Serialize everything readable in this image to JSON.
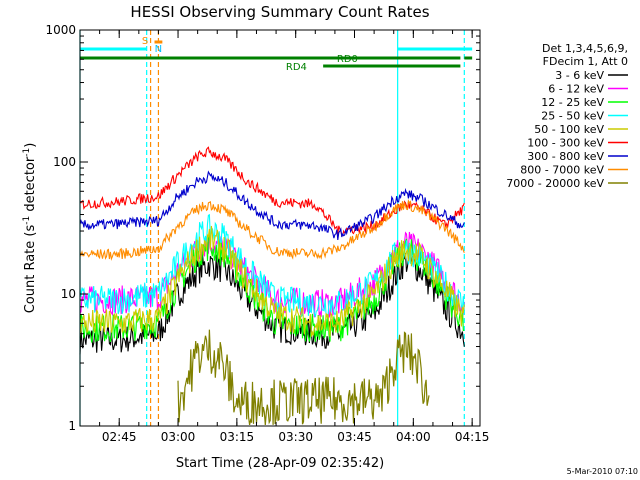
{
  "chart_data": {
    "type": "line",
    "title": "HESSI Observing Summary Count Rates",
    "xlabel": "Start Time (28-Apr-09 02:35:42)",
    "ylabel_main": "Count Rate (s",
    "ylabel_sup1": "-1",
    "ylabel_mid": " detector",
    "ylabel_sup2": "-1",
    "ylabel_end": ")",
    "yscale": "log",
    "ylim": [
      1,
      1000
    ],
    "xlim": [
      "02:35",
      "04:17"
    ],
    "x_ticks": [
      "02:45",
      "03:00",
      "03:15",
      "03:30",
      "03:45",
      "04:00",
      "04:15"
    ],
    "y_ticks": [
      "1",
      "10",
      "100",
      "1000"
    ],
    "footer": "5-Mar-2010 07:10",
    "legend": {
      "header": [
        "Det 1,3,4,5,6,9,",
        "FDecim 1, Att 0"
      ],
      "entries": [
        {
          "label": "3 - 6 keV",
          "color": "#000000"
        },
        {
          "label": "6 - 12 keV",
          "color": "#ff00ff"
        },
        {
          "label": "12 - 25 keV",
          "color": "#00ff00"
        },
        {
          "label": "25 - 50 keV",
          "color": "#00ffff"
        },
        {
          "label": "50 - 100 keV",
          "color": "#cccc00"
        },
        {
          "label": "100 - 300 keV",
          "color": "#ff0000"
        },
        {
          "label": "300 - 800 keV",
          "color": "#0000cc"
        },
        {
          "label": "800 - 7000 keV",
          "color": "#ff8c00"
        },
        {
          "label": "7000 - 20000 keV",
          "color": "#808000"
        }
      ]
    },
    "flags": {
      "S": {
        "label": "S",
        "color": "#ff8c00"
      },
      "N": {
        "label": "N",
        "color": "#00bfff"
      },
      "RD0": {
        "label": "RD0",
        "color": "#008000"
      },
      "RD4": {
        "label": "RD4",
        "color": "#008000"
      }
    },
    "vlines": [
      {
        "x": "02:35",
        "color": "#00ffff",
        "style": "solid"
      },
      {
        "x": "02:52",
        "color": "#00ffff",
        "style": "dashed"
      },
      {
        "x": "02:53",
        "color": "#ff8c00",
        "style": "dashed"
      },
      {
        "x": "02:55",
        "color": "#ff8c00",
        "style": "dashed"
      },
      {
        "x": "03:56",
        "color": "#00ffff",
        "style": "solid"
      },
      {
        "x": "04:13",
        "color": "#00ffff",
        "style": "dashed"
      }
    ],
    "series": [
      {
        "name": "3 - 6 keV",
        "color": "#000000",
        "x": [
          "02:35",
          "02:45",
          "02:55",
          "03:00",
          "03:05",
          "03:08",
          "03:12",
          "03:18",
          "03:25",
          "03:35",
          "03:41",
          "03:50",
          "03:55",
          "03:58",
          "04:02",
          "04:08",
          "04:13"
        ],
        "y": [
          4.5,
          4.5,
          5,
          10,
          15,
          17,
          15,
          9,
          5.5,
          5,
          5,
          7,
          13,
          18,
          15,
          8,
          5
        ]
      },
      {
        "name": "6 - 12 keV",
        "color": "#ff00ff",
        "x": [
          "02:35",
          "02:45",
          "02:55",
          "03:00",
          "03:05",
          "03:08",
          "03:12",
          "03:18",
          "03:25",
          "03:35",
          "03:41",
          "03:50",
          "03:55",
          "03:58",
          "04:02",
          "04:08",
          "04:13"
        ],
        "y": [
          9,
          9,
          9.5,
          15,
          22,
          25,
          22,
          14,
          9,
          8.5,
          8.5,
          12,
          20,
          24,
          21,
          13,
          8
        ]
      },
      {
        "name": "12 - 25 keV",
        "color": "#00ff00",
        "x": [
          "02:35",
          "02:45",
          "02:55",
          "03:00",
          "03:05",
          "03:08",
          "03:12",
          "03:18",
          "03:25",
          "03:35",
          "03:41",
          "03:50",
          "03:55",
          "03:58",
          "04:02",
          "04:08",
          "04:13"
        ],
        "y": [
          5.5,
          5.5,
          6,
          12,
          20,
          23,
          20,
          11,
          6,
          5.5,
          5.5,
          9,
          17,
          22,
          18,
          10,
          6
        ]
      },
      {
        "name": "25 - 50 keV",
        "color": "#00ffff",
        "x": [
          "02:35",
          "02:45",
          "02:55",
          "03:00",
          "03:05",
          "03:08",
          "03:12",
          "03:18",
          "03:25",
          "03:35",
          "03:41",
          "03:50",
          "03:55",
          "03:58",
          "04:02",
          "04:08",
          "04:13"
        ],
        "y": [
          9,
          9,
          10,
          17,
          27,
          31,
          27,
          15,
          9,
          8.5,
          8.5,
          12,
          19,
          22,
          19,
          12,
          8
        ]
      },
      {
        "name": "50 - 100 keV",
        "color": "#cccc00",
        "x": [
          "02:35",
          "02:45",
          "02:55",
          "03:00",
          "03:05",
          "03:08",
          "03:12",
          "03:18",
          "03:25",
          "03:35",
          "03:41",
          "03:50",
          "03:55",
          "03:58",
          "04:02",
          "04:08",
          "04:13"
        ],
        "y": [
          6,
          6,
          6.5,
          13,
          22,
          26,
          22,
          12,
          7,
          6,
          6,
          10,
          18,
          22,
          19,
          11,
          6.5
        ]
      },
      {
        "name": "100 - 300 keV",
        "color": "#ff0000",
        "x": [
          "02:35",
          "02:45",
          "02:55",
          "03:00",
          "03:05",
          "03:08",
          "03:12",
          "03:18",
          "03:25",
          "03:35",
          "03:41",
          "03:50",
          "03:55",
          "03:58",
          "04:02",
          "04:08",
          "04:13"
        ],
        "y": [
          48,
          50,
          55,
          80,
          110,
          120,
          105,
          70,
          50,
          48,
          30,
          33,
          42,
          48,
          44,
          33,
          45
        ]
      },
      {
        "name": "300 - 800 keV",
        "color": "#0000cc",
        "x": [
          "02:35",
          "02:45",
          "02:55",
          "03:00",
          "03:05",
          "03:08",
          "03:12",
          "03:18",
          "03:25",
          "03:35",
          "03:41",
          "03:50",
          "03:55",
          "03:58",
          "04:02",
          "04:08",
          "04:13"
        ],
        "y": [
          33,
          34,
          36,
          55,
          72,
          78,
          70,
          48,
          34,
          33,
          28,
          38,
          52,
          58,
          52,
          40,
          32
        ]
      },
      {
        "name": "800 - 7000 keV",
        "color": "#ff8c00",
        "x": [
          "02:35",
          "02:45",
          "02:55",
          "03:00",
          "03:05",
          "03:08",
          "03:12",
          "03:18",
          "03:25",
          "03:35",
          "03:41",
          "03:50",
          "03:55",
          "03:58",
          "04:02",
          "04:08",
          "04:13"
        ],
        "y": [
          20,
          20,
          22,
          33,
          44,
          48,
          43,
          30,
          21,
          20,
          22,
          32,
          44,
          48,
          43,
          32,
          22
        ]
      },
      {
        "name": "7000 - 20000 keV",
        "color": "#808000",
        "x": [
          "03:00",
          "03:03",
          "03:05",
          "03:08",
          "03:11",
          "03:13",
          "03:15",
          "03:52",
          "03:55",
          "03:58",
          "04:01",
          "04:04"
        ],
        "y": [
          1.5,
          2.5,
          3.5,
          3.8,
          3.2,
          2.2,
          1.5,
          1.6,
          3.0,
          3.8,
          3.0,
          1.5
        ]
      }
    ]
  }
}
